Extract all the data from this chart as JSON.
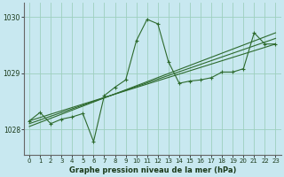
{
  "bg_color": "#c8e8f0",
  "grid_color": "#9ecfbe",
  "line_color": "#2d6a2d",
  "xlabel": "Graphe pression niveau de la mer (hPa)",
  "xlim": [
    -0.5,
    23.5
  ],
  "ylim": [
    1027.55,
    1030.25
  ],
  "yticks": [
    1028,
    1029,
    1030
  ],
  "xticks": [
    0,
    1,
    2,
    3,
    4,
    5,
    6,
    7,
    8,
    9,
    10,
    11,
    12,
    13,
    14,
    15,
    16,
    17,
    18,
    19,
    20,
    21,
    22,
    23
  ],
  "series1_x": [
    0,
    1,
    2,
    3,
    4,
    5,
    6,
    7,
    8,
    9,
    10,
    11,
    12,
    13,
    14,
    15,
    16,
    17,
    18,
    19,
    20,
    21,
    22,
    23
  ],
  "series1_y": [
    1028.15,
    1028.3,
    1028.1,
    1028.18,
    1028.22,
    1028.28,
    1027.78,
    1028.6,
    1028.75,
    1028.88,
    1029.58,
    1029.96,
    1029.88,
    1029.2,
    1028.82,
    1028.86,
    1028.88,
    1028.92,
    1029.02,
    1029.02,
    1029.08,
    1029.72,
    1029.52,
    1029.52
  ],
  "trend1_x": [
    0,
    23
  ],
  "trend1_y": [
    1028.15,
    1029.52
  ],
  "trend2_x": [
    0,
    23
  ],
  "trend2_y": [
    1028.1,
    1029.62
  ],
  "trend3_x": [
    0,
    23
  ],
  "trend3_y": [
    1028.05,
    1029.72
  ]
}
